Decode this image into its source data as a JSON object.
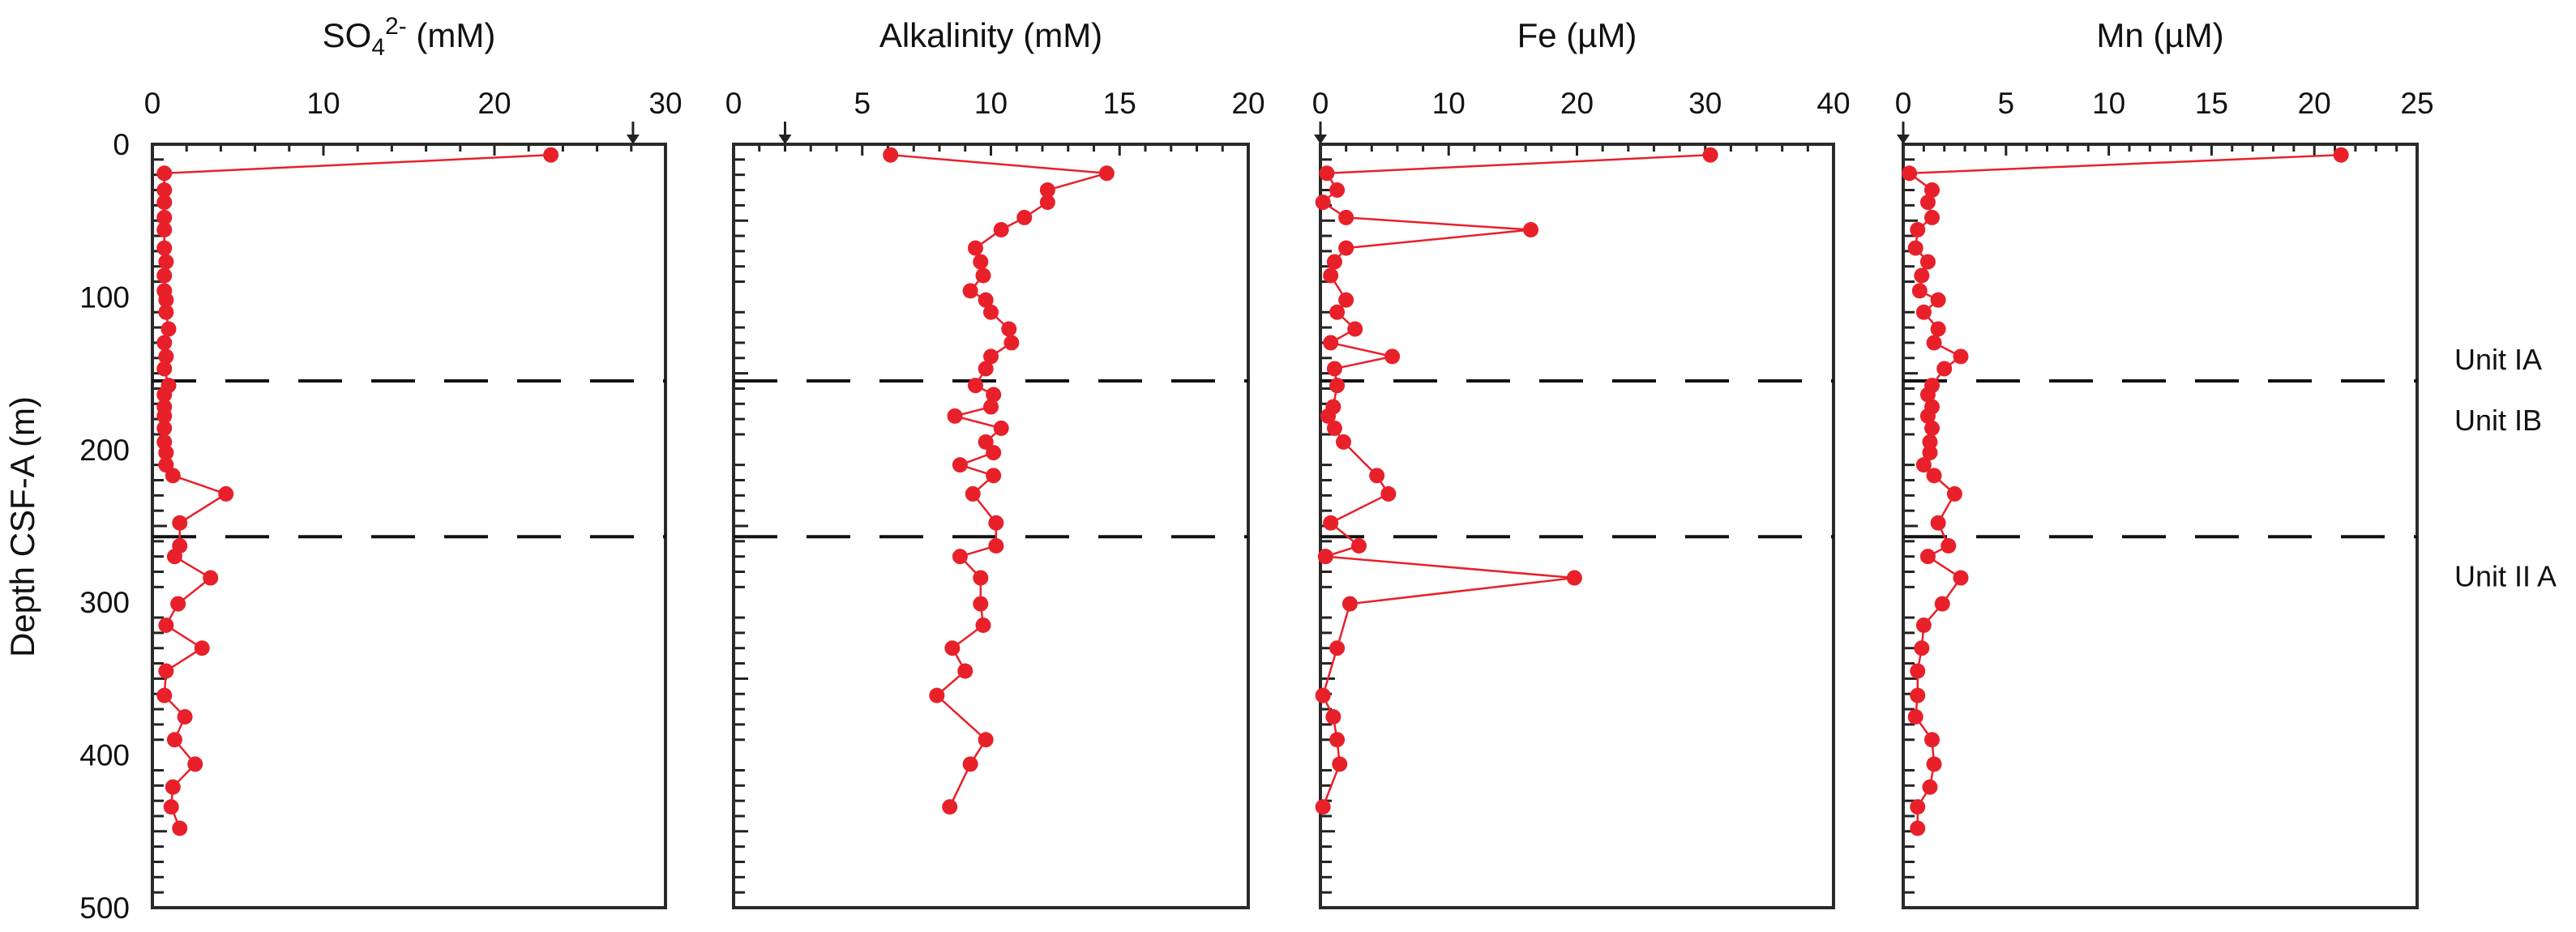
{
  "chart_data": {
    "type": "scatter",
    "shared_y": {
      "label": "Depth CSF-A (m)",
      "range": [
        500,
        0
      ],
      "ticks": [
        "0",
        "100",
        "200",
        "300",
        "400",
        "500"
      ],
      "tick_values": [
        0,
        100,
        200,
        300,
        400,
        500
      ]
    },
    "unit_boundaries": [
      155,
      257
    ],
    "unit_labels": [
      {
        "label": "Unit IA",
        "depth": 140
      },
      {
        "label": "Unit IB",
        "depth": 180
      },
      {
        "label": "Unit II A",
        "depth": 282
      }
    ],
    "line_color": "#e8202a",
    "panels": [
      {
        "title": "SO4 2- (mM)",
        "title_parts": {
          "main": "SO",
          "sub": "4",
          "sup": "2-",
          "unit": " (mM)"
        },
        "xlim": [
          0,
          30
        ],
        "ticks": [
          "0",
          "10",
          "20",
          "30"
        ],
        "tick_values": [
          0,
          10,
          20,
          30
        ],
        "minor_step": 2,
        "seawater_arrow": 28.1,
        "depth": [
          7,
          19,
          30,
          38,
          48,
          56,
          68,
          77,
          86,
          96,
          102,
          110,
          121,
          130,
          139,
          147,
          158,
          164,
          172,
          178,
          186,
          195,
          202,
          210,
          217,
          229,
          248,
          263,
          270,
          284,
          301,
          315,
          330,
          345,
          361,
          375,
          390,
          406,
          421,
          434,
          448
        ],
        "values": [
          23.3,
          0.7,
          0.7,
          0.7,
          0.7,
          0.7,
          0.7,
          0.8,
          0.7,
          0.7,
          0.8,
          0.8,
          0.95,
          0.7,
          0.8,
          0.7,
          0.95,
          0.7,
          0.7,
          0.7,
          0.7,
          0.7,
          0.8,
          0.8,
          1.2,
          4.3,
          1.6,
          1.6,
          1.3,
          3.4,
          1.5,
          0.8,
          2.9,
          0.8,
          0.7,
          1.9,
          1.3,
          2.5,
          1.2,
          1.1,
          1.6
        ]
      },
      {
        "title": "Alkalinity (mM)",
        "xlim": [
          0,
          20
        ],
        "ticks": [
          "0",
          "5",
          "10",
          "15",
          "20"
        ],
        "tick_values": [
          0,
          5,
          10,
          15,
          20
        ],
        "minor_step": 1,
        "seawater_arrow": 2.0,
        "depth": [
          7,
          19,
          30,
          38,
          48,
          56,
          68,
          77,
          86,
          96,
          102,
          110,
          121,
          130,
          139,
          147,
          158,
          164,
          172,
          178,
          186,
          195,
          202,
          210,
          217,
          229,
          248,
          263,
          270,
          284,
          301,
          315,
          330,
          345,
          361,
          390,
          406,
          434
        ],
        "values": [
          6.1,
          14.5,
          12.2,
          12.2,
          11.3,
          10.4,
          9.4,
          9.6,
          9.7,
          9.2,
          9.8,
          10.0,
          10.7,
          10.8,
          10.0,
          9.8,
          9.4,
          10.1,
          10.0,
          8.6,
          10.4,
          9.8,
          10.1,
          8.8,
          10.1,
          9.3,
          10.2,
          10.2,
          8.8,
          9.6,
          9.6,
          9.7,
          8.5,
          9.0,
          7.9,
          9.8,
          9.2,
          8.4
        ]
      },
      {
        "title": "Fe (µM)",
        "xlim": [
          0,
          40
        ],
        "ticks": [
          "0",
          "10",
          "20",
          "30",
          "40"
        ],
        "tick_values": [
          0,
          10,
          20,
          30,
          40
        ],
        "minor_step": 2,
        "seawater_arrow": 0,
        "depth": [
          7,
          19,
          30,
          38,
          48,
          56,
          68,
          77,
          86,
          102,
          110,
          121,
          130,
          139,
          147,
          158,
          172,
          178,
          186,
          195,
          217,
          229,
          248,
          263,
          270,
          284,
          301,
          330,
          361,
          375,
          390,
          406,
          434
        ],
        "values": [
          30.4,
          0.5,
          1.3,
          0.2,
          2.0,
          16.4,
          2.0,
          1.1,
          0.8,
          2.0,
          1.3,
          2.7,
          0.8,
          5.6,
          1.1,
          1.3,
          1.0,
          0.6,
          1.1,
          1.8,
          4.4,
          5.3,
          0.8,
          3.0,
          0.4,
          19.8,
          2.3,
          1.3,
          0.2,
          1.0,
          1.3,
          1.5,
          0.2
        ]
      },
      {
        "title": "Mn (µM)",
        "xlim": [
          0,
          25
        ],
        "ticks": [
          "0",
          "5",
          "10",
          "15",
          "20",
          "25"
        ],
        "tick_values": [
          0,
          5,
          10,
          15,
          20,
          25
        ],
        "minor_step": 1,
        "seawater_arrow": 0,
        "depth": [
          7,
          19,
          30,
          38,
          48,
          56,
          68,
          77,
          86,
          96,
          102,
          110,
          121,
          130,
          139,
          147,
          158,
          164,
          172,
          178,
          186,
          195,
          202,
          210,
          217,
          229,
          248,
          263,
          270,
          284,
          301,
          315,
          330,
          345,
          361,
          375,
          390,
          406,
          421,
          434,
          448
        ],
        "values": [
          21.3,
          0.3,
          1.4,
          1.2,
          1.4,
          0.7,
          0.6,
          1.2,
          0.9,
          0.8,
          1.7,
          1.0,
          1.7,
          1.5,
          2.8,
          2.0,
          1.4,
          1.2,
          1.4,
          1.2,
          1.4,
          1.3,
          1.3,
          1.0,
          1.5,
          2.5,
          1.7,
          2.2,
          1.2,
          2.8,
          1.9,
          1.0,
          0.9,
          0.7,
          0.7,
          0.6,
          1.4,
          1.5,
          1.3,
          0.7,
          0.7
        ]
      }
    ]
  }
}
